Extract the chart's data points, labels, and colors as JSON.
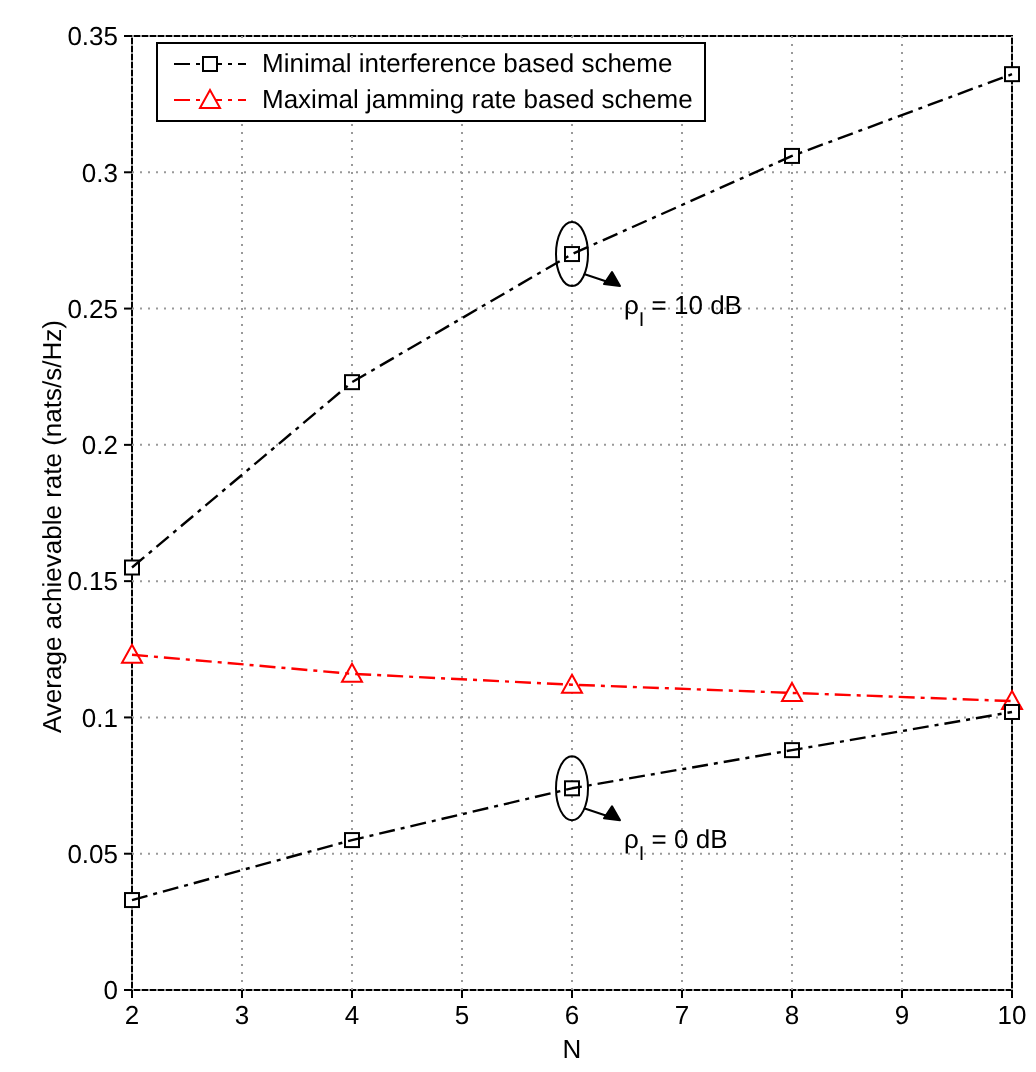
{
  "chart_data": {
    "type": "line",
    "xlabel": "N",
    "ylabel": "Average achievable rate (nats/s/Hz)",
    "x": [
      2,
      4,
      6,
      8,
      10
    ],
    "series": [
      {
        "name": "Minimal interference based scheme",
        "color": "#000000",
        "marker": "square",
        "values": [
          0.155,
          0.223,
          0.27,
          0.306,
          0.336
        ]
      },
      {
        "name": "Maximal jamming rate based scheme",
        "color": "#ff0000",
        "marker": "triangle",
        "values": [
          0.123,
          0.116,
          0.112,
          0.109,
          0.106
        ]
      },
      {
        "color": "#000000",
        "marker": "square",
        "values": [
          0.033,
          0.055,
          0.074,
          0.088,
          0.102
        ]
      }
    ],
    "line_style": "dashed",
    "xlim": [
      2,
      10
    ],
    "xticks": [
      2,
      3,
      4,
      5,
      6,
      7,
      8,
      9,
      10
    ],
    "ylim": [
      0,
      0.35
    ],
    "yticks": [
      0,
      0.05,
      0.1,
      0.15,
      0.2,
      0.25,
      0.3,
      0.35
    ],
    "grid": true,
    "legend": "top left",
    "annotations": [
      {
        "text": "ρ$_{I}$ = 10 dB",
        "x": 6,
        "y": 0.27
      },
      {
        "text": "ρ$_{I}$ = 0 dB",
        "x": 6,
        "y": 0.074
      }
    ]
  }
}
